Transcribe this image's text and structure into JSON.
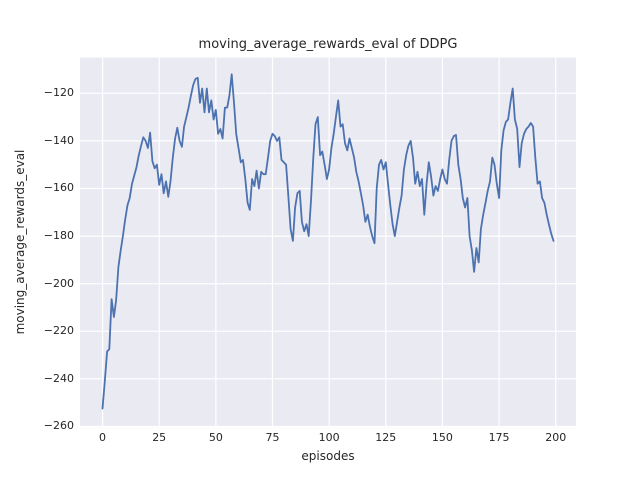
{
  "figure": {
    "background": "#ffffff"
  },
  "chart_data": {
    "type": "line",
    "title": "moving_average_rewards_eval of DDPG",
    "xlabel": "episodes",
    "ylabel": "moving_average_rewards_eval",
    "grid": true,
    "legend": "none",
    "style": "seaborn-darkgrid",
    "axes_background": "#eaeaf2",
    "grid_color": "#ffffff",
    "text_color": "#262626",
    "line_color": "#4c72b0",
    "xlim": [
      -9.95,
      208.95
    ],
    "ylim": [
      -260.3,
      -105.0
    ],
    "xticks": [
      0,
      25,
      50,
      75,
      100,
      125,
      150,
      175,
      200
    ],
    "yticks": [
      -260,
      -240,
      -220,
      -200,
      -180,
      -160,
      -140,
      -120
    ],
    "x_start": 0,
    "x_step": 1,
    "series": [
      {
        "name": "moving_average_rewards_eval",
        "color": "#4c72b0",
        "values": [
          -252.5,
          -241,
          -228.5,
          -227.5,
          -206.5,
          -214,
          -207,
          -193,
          -186,
          -180,
          -173,
          -167,
          -164,
          -158,
          -154.5,
          -151,
          -146,
          -142,
          -138.5,
          -140,
          -143,
          -136.5,
          -148.5,
          -151.5,
          -150,
          -158.5,
          -154,
          -162,
          -157,
          -163.5,
          -157,
          -147,
          -139,
          -134.5,
          -140,
          -142.5,
          -134,
          -130,
          -126,
          -121,
          -116.5,
          -114,
          -113.5,
          -124,
          -118,
          -128,
          -118,
          -128,
          -123,
          -131,
          -127,
          -137,
          -135,
          -139,
          -126,
          -126,
          -121,
          -112,
          -124,
          -137,
          -143,
          -149,
          -148,
          -156,
          -166,
          -169,
          -156,
          -159,
          -152.5,
          -160,
          -153,
          -154,
          -154,
          -147,
          -140,
          -137,
          -138,
          -140,
          -138.5,
          -148,
          -149,
          -150,
          -163,
          -177,
          -182,
          -168,
          -162,
          -161,
          -174,
          -178,
          -175,
          -180,
          -165,
          -147,
          -133,
          -130,
          -146,
          -144.5,
          -150,
          -156,
          -152,
          -143,
          -137,
          -130,
          -123,
          -134,
          -133,
          -141,
          -144,
          -139,
          -143,
          -147,
          -153,
          -157,
          -162,
          -167,
          -174,
          -171,
          -176,
          -180,
          -183,
          -160,
          -150,
          -148,
          -152,
          -149,
          -158,
          -167,
          -175,
          -180,
          -174,
          -168,
          -163,
          -152,
          -146,
          -142,
          -140,
          -147,
          -158,
          -153,
          -159,
          -156,
          -171,
          -158,
          -149,
          -155,
          -163,
          -159,
          -161,
          -156,
          -152,
          -156,
          -158,
          -148,
          -140,
          -138,
          -137.5,
          -150,
          -156,
          -164,
          -168,
          -164,
          -180,
          -186,
          -195,
          -185,
          -191,
          -177,
          -171,
          -166,
          -161,
          -157,
          -147,
          -150,
          -158,
          -164,
          -144,
          -135.5,
          -132,
          -131,
          -124,
          -118,
          -131,
          -135,
          -151,
          -141,
          -137,
          -135,
          -134,
          -132.5,
          -134,
          -147,
          -158,
          -157,
          -164,
          -166,
          -171,
          -175,
          -179,
          -182
        ]
      }
    ]
  }
}
